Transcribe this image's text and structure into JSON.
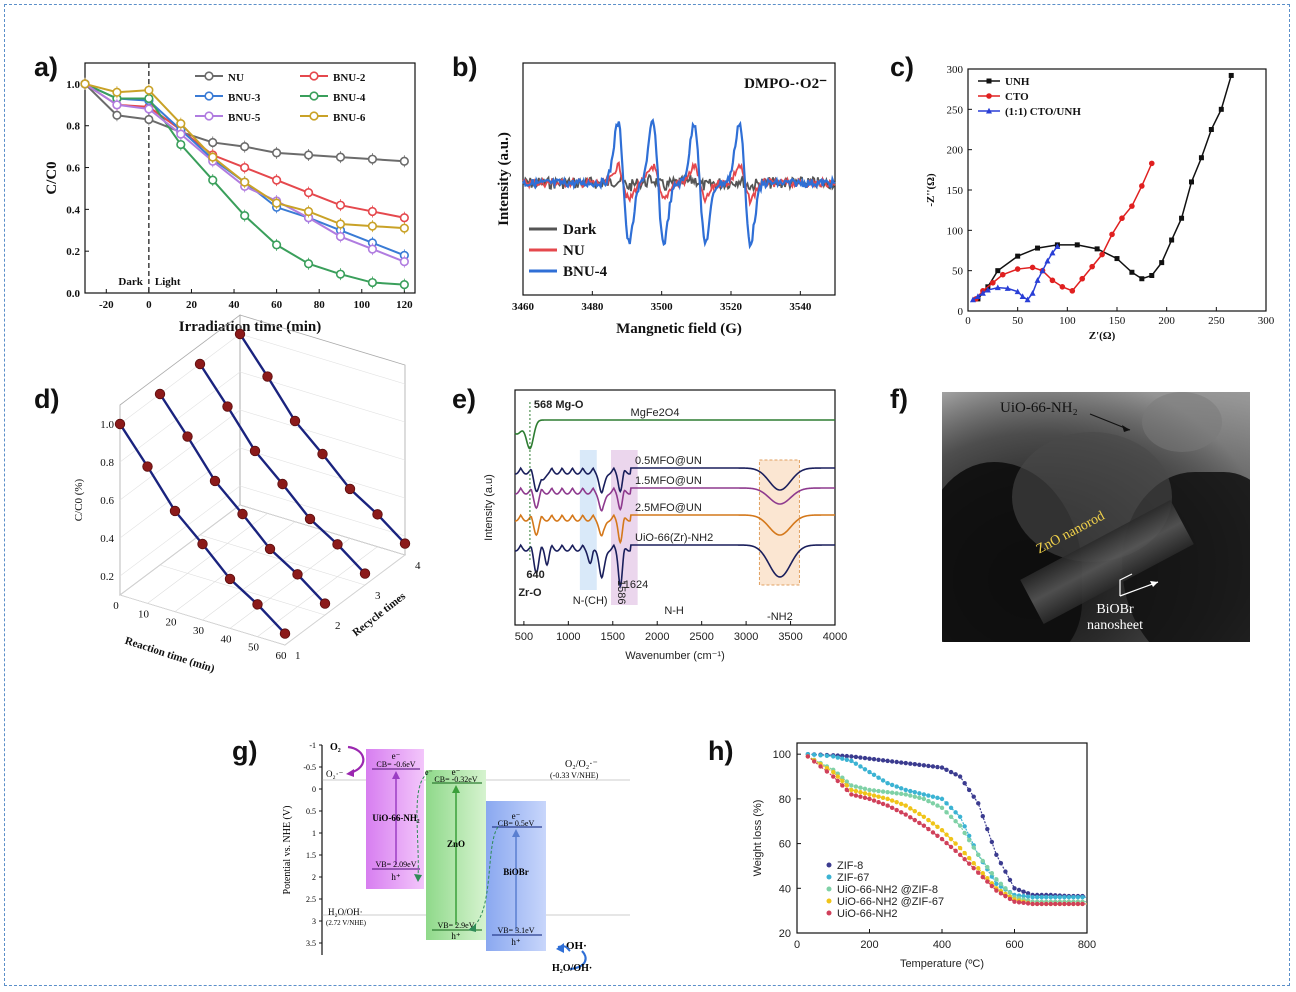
{
  "panels": {
    "a": "a)",
    "b": "b)",
    "c": "c)",
    "d": "d)",
    "e": "e)",
    "f": "f)",
    "g": "g)",
    "h": "h)"
  },
  "chart_data": [
    {
      "id": "a",
      "type": "line",
      "xlabel": "Irradiation time (min)",
      "ylabel": "C/C0",
      "xlim": [
        -30,
        125
      ],
      "ylim": [
        0,
        1.1
      ],
      "xticks": [
        -20,
        0,
        20,
        40,
        60,
        80,
        100,
        120
      ],
      "yticks": [
        0.0,
        0.2,
        0.4,
        0.6,
        0.8,
        1.0
      ],
      "annotations": {
        "dark": "Dark",
        "light": "Light"
      },
      "x": [
        -30,
        -15,
        0,
        15,
        30,
        45,
        60,
        75,
        90,
        105,
        120
      ],
      "series": [
        {
          "name": "NU",
          "color": "#6b6b6b",
          "values": [
            1.0,
            0.85,
            0.83,
            0.77,
            0.72,
            0.7,
            0.67,
            0.66,
            0.65,
            0.64,
            0.63
          ]
        },
        {
          "name": "BNU-2",
          "color": "#e5484d",
          "values": [
            1.0,
            0.9,
            0.89,
            0.78,
            0.66,
            0.6,
            0.54,
            0.48,
            0.42,
            0.39,
            0.36
          ]
        },
        {
          "name": "BNU-3",
          "color": "#3a7bd5",
          "values": [
            1.0,
            0.93,
            0.92,
            0.78,
            0.64,
            0.53,
            0.41,
            0.36,
            0.3,
            0.24,
            0.18
          ]
        },
        {
          "name": "BNU-4",
          "color": "#3a9f5b",
          "values": [
            1.0,
            0.93,
            0.93,
            0.71,
            0.54,
            0.37,
            0.23,
            0.14,
            0.09,
            0.05,
            0.04
          ]
        },
        {
          "name": "BNU-5",
          "color": "#b07ce0",
          "values": [
            1.0,
            0.9,
            0.88,
            0.76,
            0.63,
            0.51,
            0.44,
            0.36,
            0.27,
            0.21,
            0.15
          ]
        },
        {
          "name": "BNU-6",
          "color": "#c9a227",
          "values": [
            1.0,
            0.96,
            0.97,
            0.81,
            0.65,
            0.53,
            0.43,
            0.39,
            0.33,
            0.32,
            0.31
          ]
        }
      ]
    },
    {
      "id": "b",
      "type": "line",
      "xlabel": "Mangnetic field (G)",
      "ylabel": "Intensity (a.u.)",
      "xlim": [
        3460,
        3550
      ],
      "xticks": [
        3460,
        3480,
        3500,
        3520,
        3540
      ],
      "annotation": "DMPO-·O2⁻",
      "series": [
        {
          "name": "Dark",
          "color": "#555555"
        },
        {
          "name": "NU",
          "color": "#e5484d"
        },
        {
          "name": "BNU-4",
          "color": "#2f6fd6"
        }
      ],
      "peaks": [
        3489,
        3499,
        3511,
        3524
      ],
      "amplitudes": {
        "Dark": 0.05,
        "NU": 0.28,
        "BNU-4": 1.0
      }
    },
    {
      "id": "c",
      "type": "line",
      "xlabel": "Z'(Ω)",
      "ylabel": "-Z''(Ω)",
      "xlim": [
        0,
        300
      ],
      "ylim": [
        0,
        300
      ],
      "xticks": [
        0,
        50,
        100,
        150,
        200,
        250,
        300
      ],
      "yticks": [
        0,
        50,
        100,
        150,
        200,
        250,
        300
      ],
      "series": [
        {
          "name": "UNH",
          "color": "#111111",
          "marker": "square",
          "x": [
            10,
            20,
            30,
            50,
            70,
            90,
            110,
            130,
            150,
            165,
            175,
            185,
            195,
            205,
            215,
            225,
            235,
            245,
            255,
            265
          ],
          "y": [
            15,
            30,
            50,
            68,
            78,
            82,
            82,
            77,
            65,
            48,
            40,
            44,
            60,
            88,
            115,
            160,
            190,
            225,
            250,
            292
          ]
        },
        {
          "name": "CTO",
          "color": "#e02020",
          "marker": "circle",
          "x": [
            8,
            15,
            25,
            35,
            50,
            65,
            75,
            85,
            95,
            105,
            115,
            125,
            135,
            145,
            155,
            165,
            175,
            185
          ],
          "y": [
            15,
            25,
            35,
            45,
            52,
            54,
            50,
            38,
            30,
            25,
            40,
            55,
            70,
            95,
            115,
            130,
            155,
            183
          ]
        },
        {
          "name": "(1:1) CTO/UNH",
          "color": "#2a3fd6",
          "marker": "triangle",
          "x": [
            5,
            10,
            15,
            20,
            30,
            40,
            50,
            55,
            60,
            65,
            70,
            75,
            80,
            85,
            90
          ],
          "y": [
            14,
            18,
            22,
            26,
            29,
            28,
            24,
            18,
            14,
            22,
            38,
            50,
            62,
            72,
            80
          ]
        }
      ]
    },
    {
      "id": "d",
      "type": "line",
      "xlabel": "Reaction time (min)",
      "ylabel": "C/C0 (%)",
      "zlabel": "Recycle times",
      "xticks": [
        0,
        10,
        20,
        30,
        40,
        50,
        60
      ],
      "yticks": [
        0.2,
        0.4,
        0.6,
        0.8,
        1.0
      ],
      "zticks": [
        1,
        2,
        3,
        4
      ],
      "x": [
        0,
        10,
        20,
        30,
        40,
        50,
        60
      ],
      "series": [
        {
          "name": "1",
          "values": [
            1.0,
            0.82,
            0.63,
            0.5,
            0.36,
            0.27,
            0.16
          ]
        },
        {
          "name": "2",
          "values": [
            1.0,
            0.82,
            0.63,
            0.5,
            0.36,
            0.27,
            0.16
          ]
        },
        {
          "name": "3",
          "values": [
            1.0,
            0.82,
            0.63,
            0.5,
            0.36,
            0.27,
            0.16
          ]
        },
        {
          "name": "4",
          "values": [
            1.0,
            0.82,
            0.63,
            0.5,
            0.36,
            0.27,
            0.16
          ]
        }
      ]
    },
    {
      "id": "e",
      "type": "line",
      "xlabel": "Wavenumber (cm⁻¹)",
      "ylabel": "Intensity (a.u)",
      "xlim": [
        400,
        4000
      ],
      "xticks": [
        500,
        1000,
        1500,
        2000,
        2500,
        3000,
        3500,
        4000
      ],
      "series": [
        {
          "name": "MgFe2O4",
          "color": "#2e7d32"
        },
        {
          "name": "0.5MFO@UN",
          "color": "#1a1f5c"
        },
        {
          "name": "1.5MFO@UN",
          "color": "#8e3a8e"
        },
        {
          "name": "2.5MFO@UN",
          "color": "#d4781b"
        },
        {
          "name": "UiO-66(Zr)-NH2",
          "color": "#1a1f5c"
        }
      ],
      "annotations": [
        "568 Mg-O",
        "640",
        "Zr-O",
        "N-(CH)",
        "1586",
        "1624",
        "N-H",
        "-NH2"
      ]
    },
    {
      "id": "h",
      "type": "line",
      "xlabel": "Temperature (ºC)",
      "ylabel": "Weight loss (%)",
      "xlim": [
        0,
        800
      ],
      "ylim": [
        20,
        105
      ],
      "xticks": [
        0,
        200,
        400,
        600,
        800
      ],
      "yticks": [
        20,
        40,
        60,
        80,
        100
      ],
      "x": [
        30,
        100,
        150,
        200,
        250,
        300,
        350,
        400,
        450,
        500,
        550,
        600,
        650,
        700,
        750,
        800
      ],
      "series": [
        {
          "name": "ZIF-8",
          "color": "#3b3b8f",
          "values": [
            100,
            99.5,
            99,
            98,
            97,
            96,
            95,
            94,
            90,
            78,
            55,
            40,
            37,
            37,
            36.5,
            36.5
          ]
        },
        {
          "name": "ZIF-67",
          "color": "#3bb3d3",
          "values": [
            100,
            99,
            97,
            92,
            87,
            84,
            82,
            80,
            72,
            55,
            42,
            37,
            36,
            36,
            36,
            36
          ]
        },
        {
          "name": "UiO-66-NH2 @ZIF-8",
          "color": "#7fd1a6",
          "values": [
            99,
            93,
            86,
            84,
            83,
            82,
            80,
            76,
            68,
            55,
            44,
            36,
            34,
            34,
            34,
            34
          ]
        },
        {
          "name": "UiO-66-NH2 @ZIF-67",
          "color": "#f0c419",
          "values": [
            99,
            92,
            84,
            82,
            80,
            77,
            72,
            66,
            58,
            49,
            40,
            35,
            33,
            33,
            33,
            33
          ]
        },
        {
          "name": "UiO-66-NH2",
          "color": "#d0405a",
          "values": [
            99,
            90,
            82,
            80,
            77,
            73,
            68,
            62,
            55,
            47,
            39,
            34,
            33,
            33,
            33,
            33
          ]
        }
      ]
    }
  ],
  "tem": {
    "label_uio": "UiO-66-NH₂",
    "label_zno": "ZnO nanorod",
    "label_biobr_1": "BiOBr",
    "label_biobr_2": "nanosheet"
  },
  "band": {
    "ylabel": "Potential vs. NHE (V)",
    "yticks": [
      "-1",
      "-0.5",
      "0",
      "0.5",
      "1",
      "1.5",
      "2",
      "2.5",
      "3",
      "3.5"
    ],
    "o2": "O₂",
    "o2rad": "O₂·⁻",
    "o2pair": "O₂/O₂·⁻",
    "o2pot": "(-0.33 V/NHE)",
    "h2o": "H₂O/OH·",
    "h2opot": "(2.72 V/NHE)",
    "ohrad": "OH·",
    "h2o2": "H₂O/OH·",
    "uio": {
      "name": "UiO-66-NH₂",
      "cb": "CB= -0.6eV",
      "vb": "VB= 2.09eV",
      "e": "e⁻",
      "h": "h⁺"
    },
    "zno": {
      "name": "ZnO",
      "cb": "CB= -0.32eV",
      "vb": "VB= 2.9eV",
      "e": "e⁻",
      "h": "h⁺"
    },
    "biobr": {
      "name": "BiOBr",
      "cb": "CB= 0.5eV",
      "vb": "VB= 3.1eV",
      "e": "e⁻",
      "h": "h⁺"
    },
    "e_between": "e⁻"
  }
}
